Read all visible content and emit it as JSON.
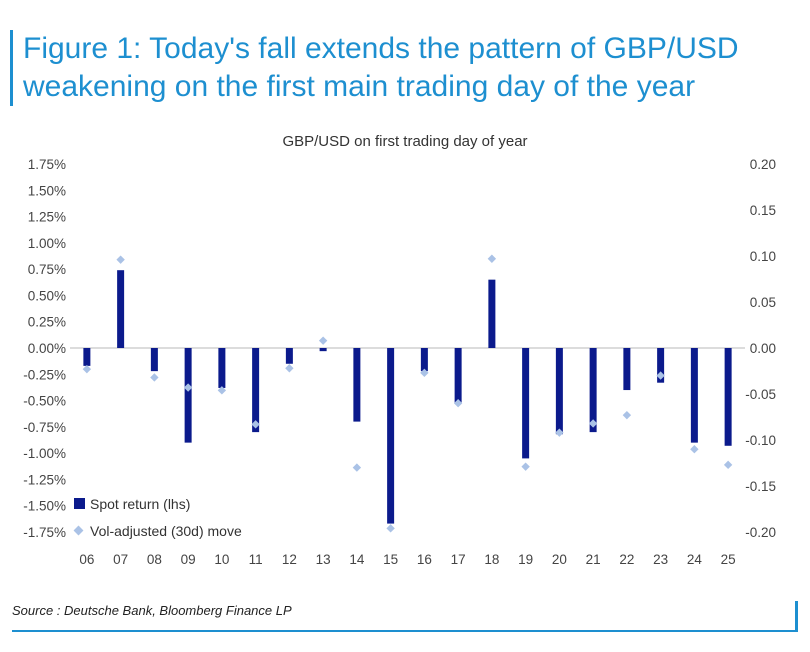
{
  "figure": {
    "title_line1": "Figure 1: Today's fall extends the pattern of GBP/USD",
    "title_line2": "weakening on the first main trading day of the year"
  },
  "source": "Source : Deutsche Bank, Bloomberg Finance LP",
  "colors": {
    "accent": "#1d8fd0",
    "bar": "#0b1a8c",
    "marker": "#aac2e6"
  },
  "chart_data": {
    "type": "bar",
    "title": "GBP/USD on first trading day of year",
    "categories": [
      "06",
      "07",
      "08",
      "09",
      "10",
      "11",
      "12",
      "13",
      "14",
      "15",
      "16",
      "17",
      "18",
      "19",
      "20",
      "21",
      "22",
      "23",
      "24",
      "25"
    ],
    "series": [
      {
        "name": "Spot return (lhs)",
        "axis": "left",
        "kind": "bar",
        "values": [
          -0.17,
          0.74,
          -0.22,
          -0.9,
          -0.38,
          -0.8,
          -0.15,
          -0.03,
          -0.7,
          -1.67,
          -0.22,
          -0.52,
          0.65,
          -1.05,
          -0.82,
          -0.8,
          -0.4,
          -0.33,
          -0.9,
          -0.93
        ]
      },
      {
        "name": "Vol-adjusted (30d) move",
        "axis": "right",
        "kind": "marker",
        "values": [
          -0.023,
          0.096,
          -0.032,
          -0.043,
          -0.046,
          -0.083,
          -0.022,
          0.008,
          -0.13,
          -0.196,
          -0.027,
          -0.06,
          0.097,
          -0.129,
          -0.092,
          -0.082,
          -0.073,
          -0.03,
          -0.11,
          -0.127
        ]
      }
    ],
    "left_axis": {
      "min": -1.75,
      "max": 1.75,
      "ticks": [
        "1.75%",
        "1.50%",
        "1.25%",
        "1.00%",
        "0.75%",
        "0.50%",
        "0.25%",
        "0.00%",
        "-0.25%",
        "-0.50%",
        "-0.75%",
        "-1.00%",
        "-1.25%",
        "-1.50%",
        "-1.75%"
      ]
    },
    "right_axis": {
      "min": -0.2,
      "max": 0.2,
      "ticks": [
        "0.20",
        "0.15",
        "0.10",
        "0.05",
        "0.00",
        "-0.05",
        "-0.10",
        "-0.15",
        "-0.20"
      ]
    },
    "legend": [
      {
        "label": "Spot return (lhs)",
        "kind": "bar"
      },
      {
        "label": "Vol-adjusted (30d) move",
        "kind": "marker"
      }
    ],
    "legend_position": "bottom-left"
  }
}
